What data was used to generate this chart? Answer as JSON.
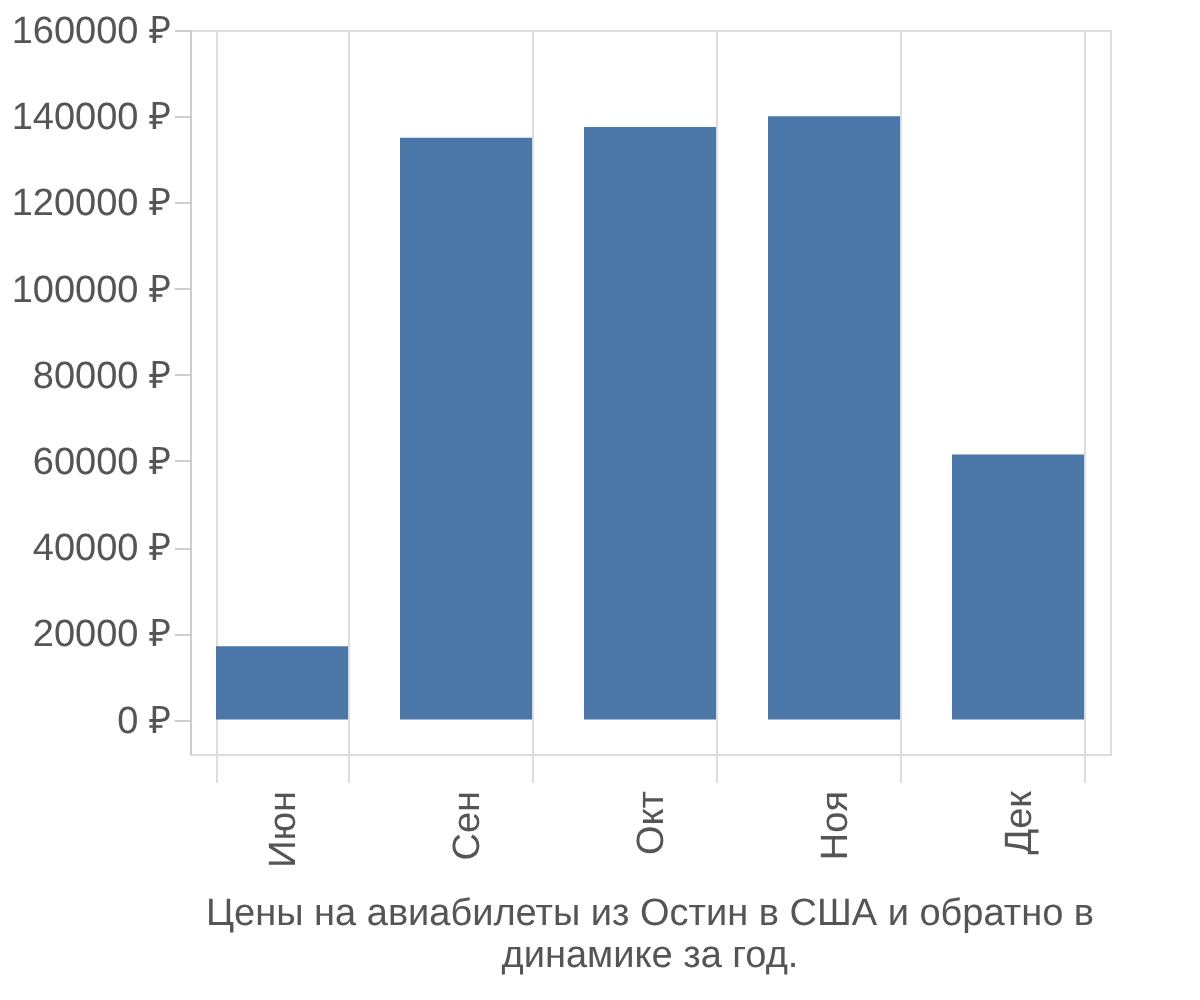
{
  "chart_data": {
    "type": "bar",
    "title": "Цены на авиабилеты из Остин в США и обратно в динамике за год.",
    "categories": [
      "Июн",
      "Сен",
      "Окт",
      "Ноя",
      "Дек"
    ],
    "values": [
      17000,
      135000,
      137500,
      140000,
      61500
    ],
    "color": "#4a76a8",
    "ylim": [
      -8000,
      160000
    ],
    "yticks": [
      {
        "value": 0,
        "label": "0 ₽"
      },
      {
        "value": 20000,
        "label": "20000 ₽"
      },
      {
        "value": 40000,
        "label": "40000 ₽"
      },
      {
        "value": 60000,
        "label": "60000 ₽"
      },
      {
        "value": 80000,
        "label": "80000 ₽"
      },
      {
        "value": 100000,
        "label": "100000 ₽"
      },
      {
        "value": 120000,
        "label": "120000 ₽"
      },
      {
        "value": 140000,
        "label": "140000 ₽"
      },
      {
        "value": 160000,
        "label": "160000 ₽"
      }
    ],
    "grid": "x"
  }
}
